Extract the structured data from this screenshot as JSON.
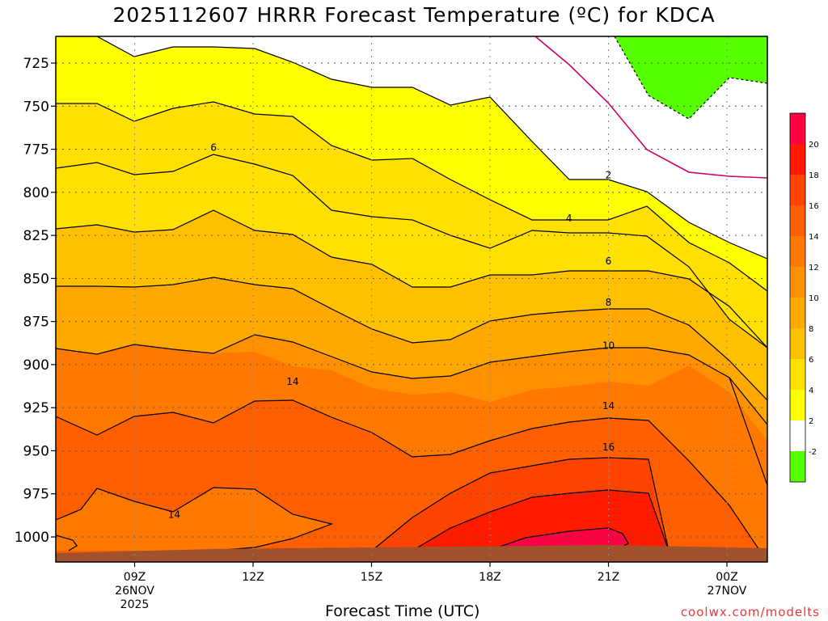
{
  "chart_data": {
    "type": "contour",
    "title": "2025112607 HRRR Forecast Temperature (ºC) for KDCA",
    "xlabel": "Forecast Time (UTC)",
    "ylabel": "",
    "credit": "coolwx.com/modelts",
    "y_axis": {
      "ticks": [
        725,
        750,
        775,
        800,
        825,
        850,
        875,
        900,
        925,
        950,
        975,
        1000
      ],
      "inverted": true
    },
    "x_axis": {
      "ticks": [
        {
          "t": 9,
          "lines": [
            "09Z",
            "26NOV",
            "2025"
          ]
        },
        {
          "t": 12,
          "lines": [
            "12Z"
          ]
        },
        {
          "t": 15,
          "lines": [
            "15Z"
          ]
        },
        {
          "t": 18,
          "lines": [
            "18Z"
          ]
        },
        {
          "t": 21,
          "lines": [
            "21Z"
          ]
        },
        {
          "t": 24,
          "lines": [
            "00Z",
            "27NOV"
          ]
        }
      ]
    },
    "grid": true,
    "colorbar": {
      "position": "right",
      "levels": [
        -2,
        2,
        4,
        6,
        8,
        10,
        12,
        14,
        16,
        18,
        20
      ],
      "colors": [
        "#55ff00",
        "#ffffff",
        "#ffff00",
        "#ffe000",
        "#ffc000",
        "#ffa800",
        "#ff9000",
        "#ff7800",
        "#ff5f00",
        "#ff4400",
        "#ff1a00",
        "#ff0044"
      ]
    },
    "contour_labels": [
      {
        "t": 11,
        "p": 774,
        "v": "6"
      },
      {
        "t": 21,
        "p": 790,
        "v": "2"
      },
      {
        "t": 20,
        "p": 815,
        "v": "4"
      },
      {
        "t": 21,
        "p": 840,
        "v": "6"
      },
      {
        "t": 21,
        "p": 864,
        "v": "8"
      },
      {
        "t": 21,
        "p": 889,
        "v": "10"
      },
      {
        "t": 13,
        "p": 910,
        "v": "14"
      },
      {
        "t": 21,
        "p": 924,
        "v": "14"
      },
      {
        "t": 21,
        "p": 948,
        "v": "16"
      },
      {
        "t": 10,
        "p": 987,
        "v": "14"
      }
    ]
  }
}
